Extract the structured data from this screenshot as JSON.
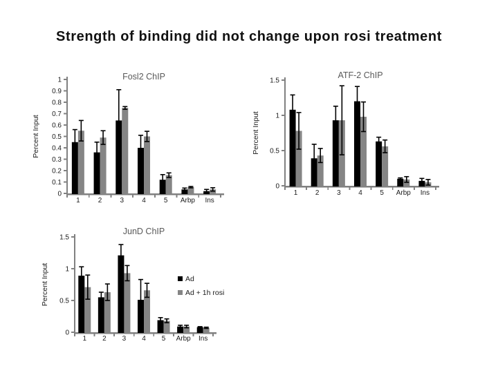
{
  "slide": {
    "title": "Strength of binding did not change upon rosi treatment"
  },
  "colors": {
    "bar_black": "#000000",
    "bar_gray": "#858585",
    "axis": "#808080",
    "chart_title": "#595959",
    "label_text": "#1a1a1a",
    "error_bar": "#000000"
  },
  "chart_data": [
    {
      "type": "bar",
      "title": "Fosl2 ChIP",
      "xlabel": "",
      "ylabel": "Percent Input",
      "ylim": [
        0,
        1
      ],
      "tick_values": [
        0,
        0.1,
        0.2,
        0.3,
        0.4,
        0.5,
        0.6,
        0.7,
        0.8,
        0.9,
        1
      ],
      "tick_labels": [
        "0",
        "0.1",
        "0.2",
        "0.3",
        "0.4",
        "0.5",
        "0.6",
        "0.7",
        "0.8",
        "0.9",
        "1"
      ],
      "categories": [
        "1",
        "2",
        "3",
        "4",
        "5",
        "Arbp",
        "Ins"
      ],
      "series": [
        {
          "name": "Ad",
          "color": "#000000",
          "values": [
            0.45,
            0.36,
            0.64,
            0.4,
            0.12,
            0.035,
            0.02
          ],
          "errors": [
            0.11,
            0.09,
            0.27,
            0.11,
            0.045,
            0.012,
            0.015
          ]
        },
        {
          "name": "Ad + 1h rosi",
          "color": "#858585",
          "values": [
            0.55,
            0.49,
            0.75,
            0.5,
            0.16,
            0.055,
            0.035
          ],
          "errors": [
            0.09,
            0.06,
            0.012,
            0.045,
            0.02,
            0.006,
            0.015
          ]
        }
      ],
      "grid": false,
      "legend": false
    },
    {
      "type": "bar",
      "title": "ATF-2 ChIP",
      "xlabel": "",
      "ylabel": "Percent Input",
      "ylim": [
        0,
        1.5
      ],
      "tick_values": [
        0,
        0.5,
        1,
        1.5
      ],
      "tick_labels": [
        "0",
        "0.5",
        "1",
        "1.5"
      ],
      "categories": [
        "1",
        "2",
        "3",
        "4",
        "5",
        "Arbp",
        "Ins"
      ],
      "series": [
        {
          "name": "Ad",
          "color": "#000000",
          "values": [
            1.08,
            0.39,
            0.93,
            1.2,
            0.63,
            0.1,
            0.07
          ],
          "errors": [
            0.21,
            0.2,
            0.2,
            0.21,
            0.06,
            0.012,
            0.035
          ]
        },
        {
          "name": "Ad + 1h rosi",
          "color": "#858585",
          "values": [
            0.78,
            0.43,
            0.93,
            0.98,
            0.56,
            0.09,
            0.05
          ],
          "errors": [
            0.26,
            0.1,
            0.49,
            0.21,
            0.09,
            0.04,
            0.04
          ]
        }
      ],
      "grid": false,
      "legend": false
    },
    {
      "type": "bar",
      "title": "JunD ChIP",
      "xlabel": "",
      "ylabel": "Percent Input",
      "ylim": [
        0,
        1.5
      ],
      "tick_values": [
        0,
        0.5,
        1,
        1.5
      ],
      "tick_labels": [
        "0",
        "0.5",
        "1",
        "1.5"
      ],
      "categories": [
        "1",
        "2",
        "3",
        "4",
        "5",
        "Arbp",
        "Ins"
      ],
      "series": [
        {
          "name": "Ad",
          "color": "#000000",
          "values": [
            0.89,
            0.55,
            1.21,
            0.51,
            0.19,
            0.09,
            0.08
          ],
          "errors": [
            0.14,
            0.08,
            0.17,
            0.32,
            0.04,
            0.02,
            0.008
          ]
        },
        {
          "name": "Ad + 1h rosi",
          "color": "#858585",
          "values": [
            0.71,
            0.63,
            0.93,
            0.66,
            0.18,
            0.09,
            0.07
          ],
          "errors": [
            0.19,
            0.13,
            0.12,
            0.11,
            0.03,
            0.02,
            0.01
          ]
        }
      ],
      "grid": false,
      "legend": true,
      "legend_position": "right-inside",
      "legend_items": [
        "Ad",
        "Ad + 1h rosi"
      ]
    }
  ]
}
